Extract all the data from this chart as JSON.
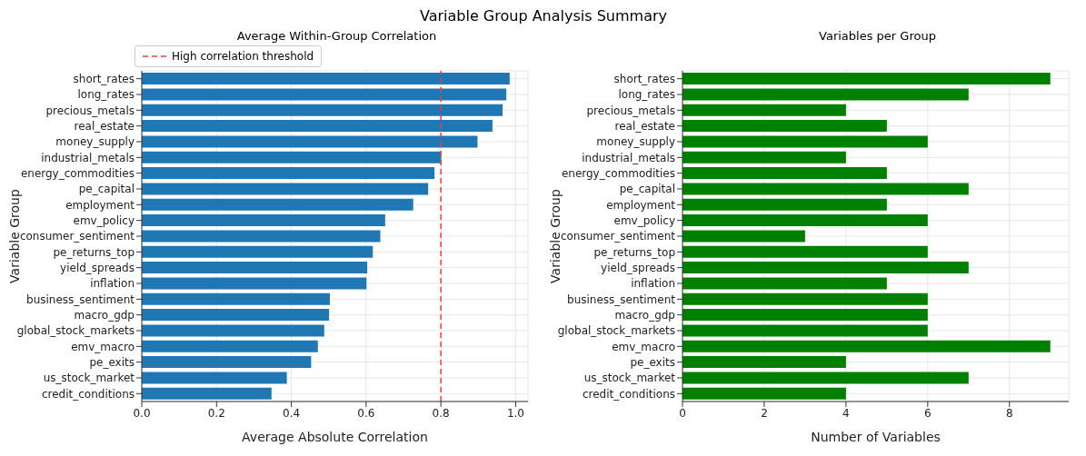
{
  "chart_data": [
    {
      "type": "bar",
      "orientation": "horizontal",
      "title": "Average Within-Group Correlation",
      "xlabel": "Average Absolute Correlation",
      "ylabel": "Variable Group",
      "annotations": [
        "Variable Group Analysis Summary"
      ],
      "categories": [
        "short_rates",
        "long_rates",
        "precious_metals",
        "real_estate",
        "money_supply",
        "industrial_metals",
        "energy_commodities",
        "pe_capital",
        "employment",
        "emv_policy",
        "consumer_sentiment",
        "pe_returns_top",
        "yield_spreads",
        "inflation",
        "business_sentiment",
        "macro_gdp",
        "global_stock_markets",
        "emv_macro",
        "pe_exits",
        "us_stock_market",
        "credit_conditions"
      ],
      "values": [
        0.984,
        0.975,
        0.965,
        0.938,
        0.898,
        0.801,
        0.783,
        0.766,
        0.726,
        0.651,
        0.638,
        0.618,
        0.603,
        0.601,
        0.503,
        0.501,
        0.488,
        0.471,
        0.453,
        0.388,
        0.347
      ],
      "color": "#1f77b4",
      "xlim": [
        0,
        1.033
      ],
      "xticks": [
        {
          "value": 0,
          "label": "0.0"
        },
        0.2,
        0.4,
        0.6,
        0.8,
        {
          "value": 1,
          "label": "1.0"
        }
      ],
      "grid": true,
      "legend": "top left",
      "ref_lines": [
        {
          "axis": "x",
          "value": 0.8,
          "label": "High correlation threshold",
          "color": "#e8413f",
          "line_style": "dashed"
        }
      ]
    },
    {
      "type": "bar",
      "orientation": "horizontal",
      "title": "Variables per Group",
      "xlabel": "Number of Variables",
      "ylabel": "Variable Group",
      "categories": [
        "short_rates",
        "long_rates",
        "precious_metals",
        "real_estate",
        "money_supply",
        "industrial_metals",
        "energy_commodities",
        "pe_capital",
        "employment",
        "emv_policy",
        "consumer_sentiment",
        "pe_returns_top",
        "yield_spreads",
        "inflation",
        "business_sentiment",
        "macro_gdp",
        "global_stock_markets",
        "emv_macro",
        "pe_exits",
        "us_stock_market",
        "credit_conditions"
      ],
      "values": [
        9,
        7,
        4,
        5,
        6,
        4,
        5,
        7,
        5,
        6,
        3,
        6,
        7,
        5,
        6,
        6,
        6,
        9,
        4,
        7,
        4
      ],
      "color": "#008000",
      "xlim": [
        0,
        9.45
      ],
      "xticks": [
        0,
        2,
        4,
        6,
        8
      ],
      "grid": true
    }
  ]
}
